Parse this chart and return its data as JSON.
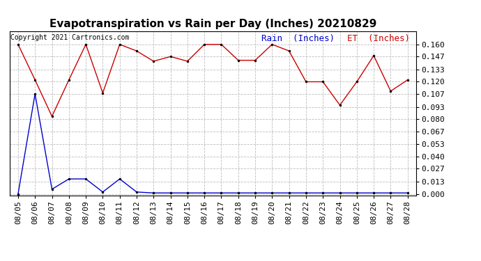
{
  "title": "Evapotranspiration vs Rain per Day (Inches) 20210829",
  "copyright": "Copyright 2021 Cartronics.com",
  "legend_rain": "Rain  (Inches)",
  "legend_et": "ET  (Inches)",
  "dates": [
    "08/05",
    "08/06",
    "08/07",
    "08/08",
    "08/09",
    "08/10",
    "08/11",
    "08/12",
    "08/13",
    "08/14",
    "08/15",
    "08/16",
    "08/17",
    "08/18",
    "08/19",
    "08/20",
    "08/21",
    "08/22",
    "08/23",
    "08/24",
    "08/25",
    "08/26",
    "08/27",
    "08/28"
  ],
  "rain": [
    0.16,
    0.122,
    0.083,
    0.122,
    0.16,
    0.108,
    0.16,
    0.153,
    0.142,
    0.147,
    0.142,
    0.16,
    0.16,
    0.143,
    0.143,
    0.16,
    0.153,
    0.12,
    0.12,
    0.095,
    0.12,
    0.148,
    0.11,
    0.122
  ],
  "et": [
    0.0,
    0.107,
    0.005,
    0.016,
    0.016,
    0.002,
    0.016,
    0.002,
    0.001,
    0.001,
    0.001,
    0.001,
    0.001,
    0.001,
    0.001,
    0.001,
    0.001,
    0.001,
    0.001,
    0.001,
    0.001,
    0.001,
    0.001,
    0.001
  ],
  "rain_color": "#cc0000",
  "et_color": "#0000cc",
  "background_color": "#ffffff",
  "grid_color": "#bbbbbb",
  "title_fontsize": 11,
  "tick_fontsize": 8,
  "legend_fontsize": 9,
  "ylim_min": -0.002,
  "ylim_max": 0.174,
  "yticks": [
    0.0,
    0.013,
    0.027,
    0.04,
    0.053,
    0.067,
    0.08,
    0.093,
    0.107,
    0.12,
    0.133,
    0.147,
    0.16
  ]
}
